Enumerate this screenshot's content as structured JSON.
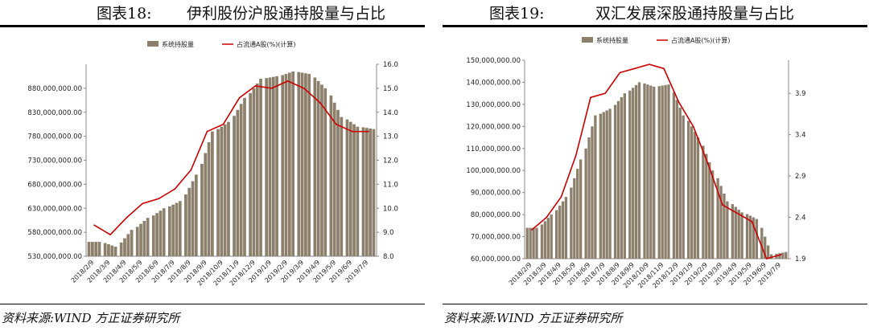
{
  "figures": [
    {
      "number": "图表18:",
      "title": "伊利股份沪股通持股量与占比",
      "source": "资料来源:WIND 方正证券研究所"
    },
    {
      "number": "图表19:",
      "title": "双汇发展深股通持股量与占比",
      "source": "资料来源:WIND 方正证券研究所"
    }
  ],
  "colors": {
    "bar": "#8c7f6b",
    "line": "#cc0000"
  },
  "chart_data": [
    {
      "type": "bar",
      "legend": [
        "系统持股量",
        "占流通A股(%)(计算)"
      ],
      "legend_position": "top-center",
      "grid": false,
      "x_ticks": [
        "2018/2/9",
        "2018/3/9",
        "2018/4/9",
        "2018/5/9",
        "2018/6/9",
        "2018/7/9",
        "2018/8/9",
        "2018/9/9",
        "2018/10/9",
        "2018/11/9",
        "2018/12/9",
        "2019/1/9",
        "2019/2/9",
        "2019/3/9",
        "2019/4/9",
        "2019/5/9",
        "2019/6/9",
        "2019/7/9"
      ],
      "y_left_ticks": [
        "530,000,000.00",
        "580,000,000.00",
        "630,000,000.00",
        "680,000,000.00",
        "730,000,000.00",
        "780,000,000.00",
        "830,000,000.00",
        "880,000,000.00"
      ],
      "y_left_range": [
        530000000,
        930000000
      ],
      "y_right_ticks": [
        "8.0",
        "9.0",
        "10.0",
        "11.0",
        "12.0",
        "13.0",
        "14.0",
        "15.0",
        "16.0"
      ],
      "y_right_range": [
        8.0,
        16.0
      ],
      "series": [
        {
          "name": "系统持股量",
          "type": "bar",
          "x": [
            "2018/2/9",
            "2018/3/9",
            "2018/4/9",
            "2018/5/9",
            "2018/6/9",
            "2018/7/9",
            "2018/8/9",
            "2018/9/9",
            "2018/10/9",
            "2018/11/9",
            "2018/12/9",
            "2019/1/9",
            "2019/2/9",
            "2019/3/9",
            "2019/4/9",
            "2019/5/9",
            "2019/6/9",
            "2019/7/9"
          ],
          "values": [
            560000000,
            550000000,
            585000000,
            610000000,
            630000000,
            645000000,
            700000000,
            790000000,
            810000000,
            860000000,
            900000000,
            905000000,
            915000000,
            910000000,
            880000000,
            820000000,
            800000000,
            795000000
          ]
        },
        {
          "name": "占流通A股(%)(计算)",
          "type": "line",
          "x": [
            "2018/2/9",
            "2018/3/9",
            "2018/4/9",
            "2018/5/9",
            "2018/6/9",
            "2018/7/9",
            "2018/8/9",
            "2018/9/9",
            "2018/10/9",
            "2018/11/9",
            "2018/12/9",
            "2019/1/9",
            "2019/2/9",
            "2019/3/9",
            "2019/4/9",
            "2019/5/9",
            "2019/6/9",
            "2019/7/9"
          ],
          "values": [
            9.3,
            8.9,
            9.6,
            10.2,
            10.4,
            10.8,
            11.6,
            13.2,
            13.5,
            14.6,
            15.1,
            15.0,
            15.3,
            15.0,
            14.4,
            13.5,
            13.2,
            13.2
          ]
        }
      ]
    },
    {
      "type": "bar",
      "legend": [
        "系统持股量",
        "占流通A股(%)(计算)"
      ],
      "legend_position": "top-center",
      "grid": false,
      "x_ticks": [
        "2018/2/9",
        "2018/3/9",
        "2018/4/9",
        "2018/5/9",
        "2018/6/9",
        "2018/7/9",
        "2018/8/9",
        "2018/9/9",
        "2018/10/9",
        "2018/11/9",
        "2018/12/9",
        "2019/1/9",
        "2019/2/9",
        "2019/3/9",
        "2019/4/9",
        "2019/5/9",
        "2019/6/9",
        "2019/7/9"
      ],
      "y_left_ticks": [
        "60,000,000.00",
        "70,000,000.00",
        "80,000,000.00",
        "90,000,000.00",
        "100,000,000.00",
        "110,000,000.00",
        "120,000,000.00",
        "130,000,000.00",
        "140,000,000.00",
        "150,000,000.00"
      ],
      "y_left_range": [
        60000000,
        150000000
      ],
      "y_right_ticks": [
        "1.9",
        "2.4",
        "2.9",
        "3.4",
        "3.9"
      ],
      "y_right_range": [
        1.9,
        4.3
      ],
      "series": [
        {
          "name": "系统持股量",
          "type": "bar",
          "x": [
            "2018/2/9",
            "2018/3/9",
            "2018/4/9",
            "2018/5/9",
            "2018/6/9",
            "2018/7/9",
            "2018/8/9",
            "2018/9/9",
            "2018/10/9",
            "2018/11/9",
            "2018/12/9",
            "2019/1/9",
            "2019/2/9",
            "2019/3/9",
            "2019/4/9",
            "2019/5/9",
            "2019/6/9",
            "2019/7/9"
          ],
          "values": [
            74000000,
            80000000,
            88000000,
            105000000,
            125000000,
            128000000,
            135000000,
            140000000,
            138000000,
            139000000,
            125000000,
            115000000,
            100000000,
            86000000,
            81000000,
            78000000,
            62000000,
            63000000
          ]
        },
        {
          "name": "占流通A股(%)(计算)",
          "type": "line",
          "x": [
            "2018/2/9",
            "2018/3/9",
            "2018/4/9",
            "2018/5/9",
            "2018/6/9",
            "2018/7/9",
            "2018/8/9",
            "2018/9/9",
            "2018/10/9",
            "2018/11/9",
            "2018/12/9",
            "2019/1/9",
            "2019/2/9",
            "2019/3/9",
            "2019/4/9",
            "2019/5/9",
            "2019/6/9",
            "2019/7/9"
          ],
          "values": [
            2.25,
            2.4,
            2.65,
            3.15,
            3.85,
            3.9,
            4.15,
            4.2,
            4.25,
            4.2,
            3.8,
            3.5,
            3.05,
            2.55,
            2.45,
            2.35,
            1.9,
            1.95
          ]
        }
      ]
    }
  ]
}
